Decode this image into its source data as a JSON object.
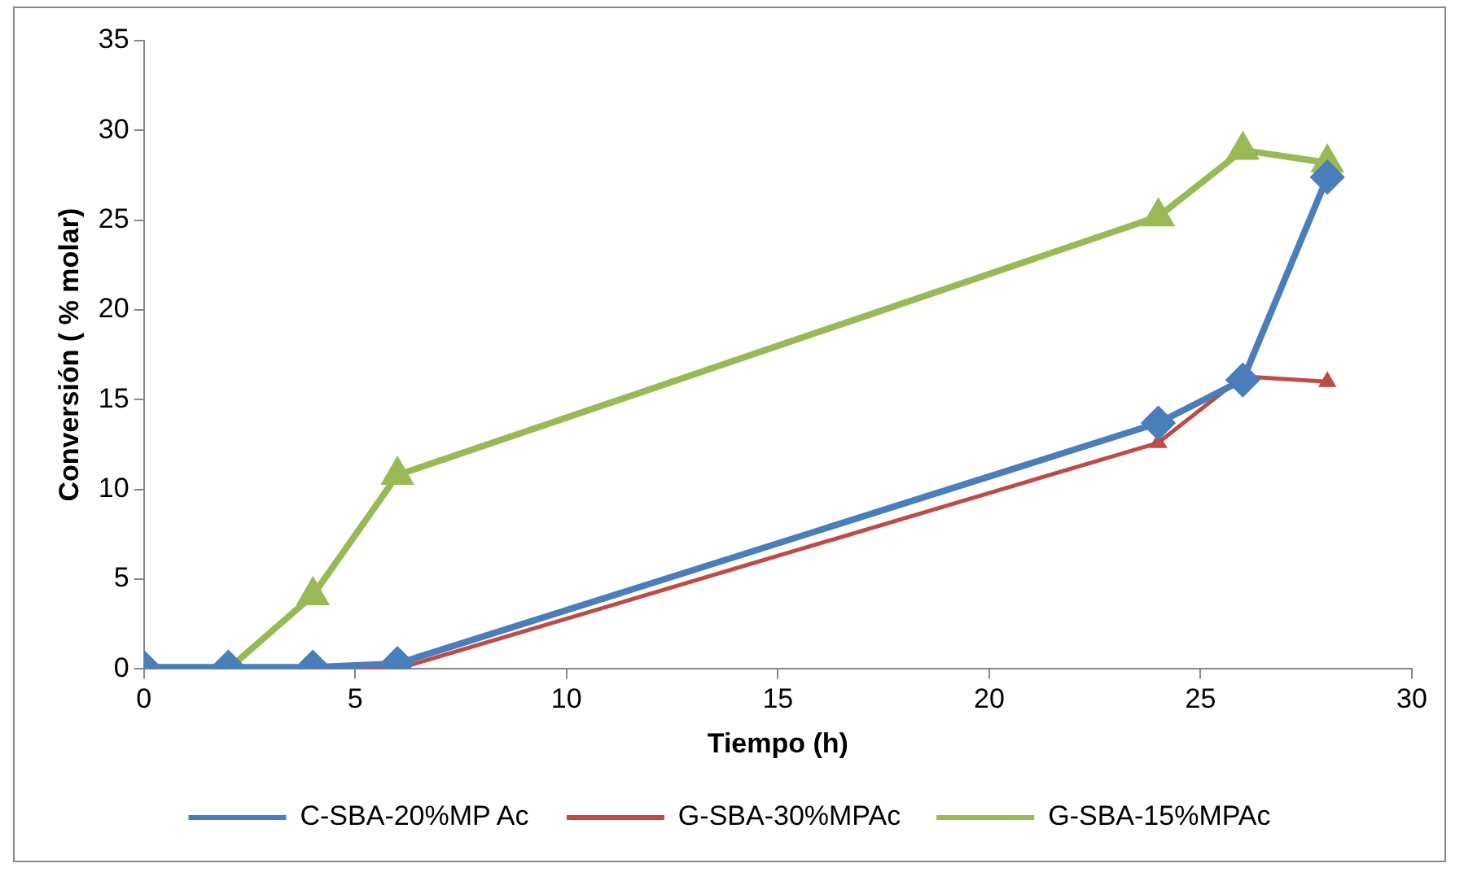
{
  "chart_data": {
    "type": "line",
    "xlabel": "Tiempo (h)",
    "ylabel": "Conversión ( % molar)",
    "xlim": [
      0,
      30
    ],
    "xticks": [
      0,
      5,
      10,
      15,
      20,
      25,
      30
    ],
    "ylim": [
      0,
      35
    ],
    "yticks": [
      0,
      5,
      10,
      15,
      20,
      25,
      30,
      35
    ],
    "grid": false,
    "legend": "bottom",
    "series": [
      {
        "name": "C-SBA-20%MP Ac",
        "color": "#4a7ebb",
        "marker": "diamond",
        "x": [
          0,
          2,
          4,
          6,
          24,
          26,
          28
        ],
        "values": [
          0.1,
          0.1,
          0.1,
          0.3,
          13.7,
          16.1,
          27.4
        ]
      },
      {
        "name": "G-SBA-30%MPAc",
        "color": "#be4b48",
        "marker": "triangle",
        "x": [
          4,
          6,
          24,
          26,
          28
        ],
        "values": [
          0,
          0,
          12.6,
          16.3,
          16
        ]
      },
      {
        "name": "G-SBA-15%MPAc",
        "color": "#98b954",
        "marker": "triangle",
        "x": [
          0,
          2,
          4,
          6,
          24,
          26,
          28
        ],
        "values": [
          0,
          0,
          4.1,
          10.8,
          25.2,
          28.9,
          28.2
        ]
      }
    ]
  }
}
